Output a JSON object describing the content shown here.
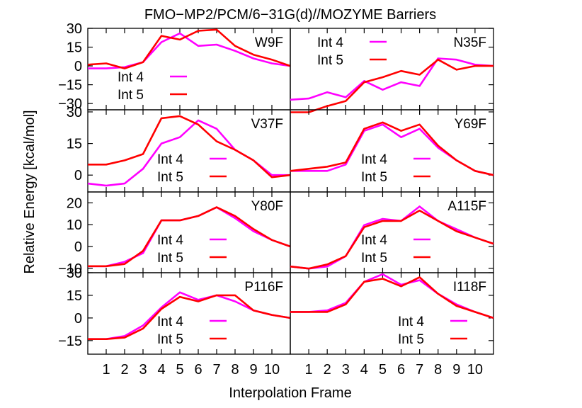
{
  "chart_data": {
    "type": "line",
    "title": "FMO−MP2/PCM/6−31G(d)//MOZYME Barriers",
    "xlabel": "Interpolation Frame",
    "ylabel": "Relative Energy [kcal/mol]",
    "x": [
      0,
      1,
      2,
      3,
      4,
      5,
      6,
      7,
      8,
      9,
      10,
      11
    ],
    "xlim": [
      0,
      11
    ],
    "x_ticks": [
      1,
      2,
      3,
      4,
      5,
      6,
      7,
      8,
      9,
      10
    ],
    "grid": false,
    "colors": {
      "Int 4": "#ff00ff",
      "Int 5": "#ff0000"
    },
    "panels": [
      {
        "label": "W9F",
        "ylim": [
          -35,
          30
        ],
        "y_ticks": [
          30,
          15,
          0,
          -15,
          -30
        ],
        "y_tick_labels": [
          "30",
          "15",
          "0",
          "−15",
          "−30"
        ],
        "legend_position": "left",
        "series": [
          {
            "name": "Int 4",
            "values": [
              -2,
              -2,
              -1,
              3,
              19,
              26,
              16,
              17,
              12,
              6,
              2,
              0
            ]
          },
          {
            "name": "Int 5",
            "values": [
              1,
              2,
              -2,
              3,
              24,
              21,
              28,
              29,
              16,
              9,
              5,
              0
            ]
          }
        ]
      },
      {
        "label": "N35F",
        "ylim": [
          -35,
          30
        ],
        "y_ticks": [],
        "y_tick_labels": [],
        "legend_position": "top-left",
        "series": [
          {
            "name": "Int 4",
            "values": [
              -27,
              -26,
              -21,
              -25,
              -12,
              -19,
              -13,
              -16,
              6,
              5,
              1,
              0
            ]
          },
          {
            "name": "Int 5",
            "values": [
              -37,
              -37,
              -32,
              -28,
              -13,
              -9,
              -4,
              -7,
              5,
              -3,
              0,
              0
            ]
          }
        ]
      },
      {
        "label": "V37F",
        "ylim": [
          -8,
          31
        ],
        "y_ticks": [
          30,
          15,
          0
        ],
        "y_tick_labels": [
          "30",
          "15",
          "0"
        ],
        "legend_position": "right",
        "series": [
          {
            "name": "Int 4",
            "values": [
              -4,
              -5,
              -4,
              3,
              15,
              18,
              26,
              22,
              12,
              7,
              0,
              0
            ]
          },
          {
            "name": "Int 5",
            "values": [
              5,
              5,
              7,
              10,
              27,
              28,
              24,
              16,
              12,
              7,
              -1,
              0
            ]
          }
        ]
      },
      {
        "label": "Y69F",
        "ylim": [
          -8,
          31
        ],
        "y_ticks": [],
        "y_tick_labels": [],
        "legend_position": "left",
        "series": [
          {
            "name": "Int 4",
            "values": [
              2,
              2,
              2,
              5,
              21,
              24,
              18,
              22,
              13,
              7,
              2,
              0
            ]
          },
          {
            "name": "Int 5",
            "values": [
              2,
              3,
              4,
              6,
              22,
              25,
              21,
              24,
              14,
              7,
              2,
              0
            ]
          }
        ]
      },
      {
        "label": "Y80F",
        "ylim": [
          -12,
          25
        ],
        "y_ticks": [
          20,
          10,
          0,
          -10
        ],
        "y_tick_labels": [
          "20",
          "10",
          "0",
          "−10"
        ],
        "legend_position": "right",
        "series": [
          {
            "name": "Int 4",
            "values": [
              -9,
              -9,
              -7,
              -3,
              12,
              12,
              14,
              18,
              13,
              7,
              3,
              0
            ]
          },
          {
            "name": "Int 5",
            "values": [
              -9,
              -9,
              -8,
              -2,
              12,
              12,
              14,
              18,
              14,
              8,
              3,
              0
            ]
          }
        ]
      },
      {
        "label": "A115F",
        "ylim": [
          -14,
          25
        ],
        "y_ticks": [],
        "y_tick_labels": [],
        "legend_position": "left",
        "series": [
          {
            "name": "Int 4",
            "values": [
              -11,
              -12,
              -11,
              -6,
              9,
              12,
              11,
              18,
              11,
              7,
              3,
              0
            ]
          },
          {
            "name": "Int 5",
            "values": [
              -11,
              -12,
              -10,
              -6,
              8,
              11,
              11,
              16,
              11,
              6,
              3,
              0
            ]
          }
        ]
      },
      {
        "label": "P116F",
        "ylim": [
          -24,
          30
        ],
        "y_ticks": [
          30,
          15,
          0,
          -15
        ],
        "y_tick_labels": [
          "30",
          "15",
          "0",
          "−15"
        ],
        "legend_position": "right",
        "series": [
          {
            "name": "Int 4",
            "values": [
              -14,
              -14,
              -12,
              -5,
              7,
              17,
              12,
              15,
              11,
              5,
              2,
              0
            ]
          },
          {
            "name": "Int 5",
            "values": [
              -14,
              -14,
              -13,
              -7,
              6,
              14,
              11,
              15,
              15,
              5,
              2,
              0
            ]
          }
        ]
      },
      {
        "label": "I118F",
        "ylim": [
          -24,
          30
        ],
        "y_ticks": [],
        "y_tick_labels": [],
        "legend_position": "right",
        "series": [
          {
            "name": "Int 4",
            "values": [
              4,
              4,
              5,
              10,
              24,
              29,
              22,
              25,
              16,
              9,
              4,
              0
            ]
          },
          {
            "name": "Int 5",
            "values": [
              4,
              4,
              4,
              9,
              24,
              26,
              21,
              27,
              16,
              8,
              4,
              0
            ]
          }
        ]
      }
    ]
  }
}
